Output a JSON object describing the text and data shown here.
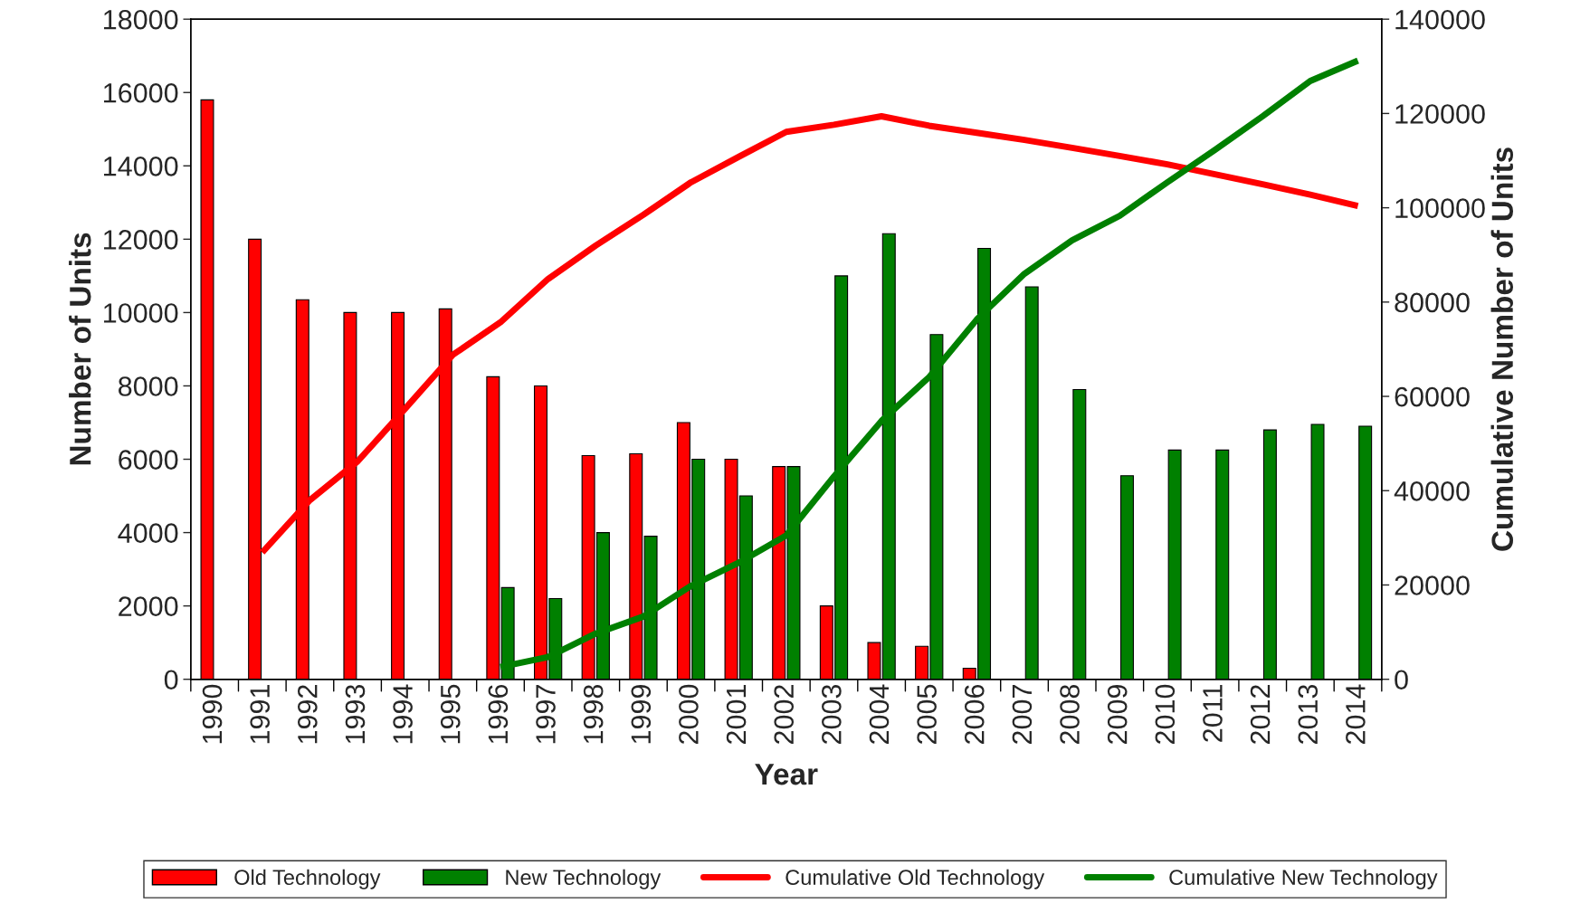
{
  "chart_data": {
    "type": "bar",
    "xlabel": "Year",
    "ylabel": "Number of Units",
    "y2label": "Cumulative Number of Units",
    "categories": [
      "1990",
      "1991",
      "1992",
      "1993",
      "1994",
      "1995",
      "1996",
      "1997",
      "1998",
      "1999",
      "2000",
      "2001",
      "2002",
      "2003",
      "2004",
      "2005",
      "2006",
      "2007",
      "2008",
      "2009",
      "2010",
      "2011",
      "2012",
      "2013",
      "2014"
    ],
    "series": [
      {
        "name": "Old Technology",
        "color": "#ff0000",
        "values": [
          15800,
          12000,
          10350,
          10000,
          10000,
          10100,
          8250,
          8000,
          6100,
          6150,
          7000,
          6000,
          5800,
          2000,
          1000,
          900,
          300,
          null,
          null,
          null,
          null,
          null,
          null,
          null,
          null
        ]
      },
      {
        "name": "New Technology",
        "color": "#008000",
        "values": [
          null,
          null,
          null,
          null,
          null,
          null,
          2500,
          2200,
          4000,
          3900,
          6000,
          5000,
          5800,
          11000,
          12150,
          9400,
          11750,
          10700,
          7900,
          5550,
          6250,
          6250,
          6800,
          6950,
          6900
        ]
      },
      {
        "name": "Cumulative Old Technology",
        "type": "line",
        "axis": "y2",
        "color": "#ff0000",
        "values": [
          null,
          26900,
          38000,
          46200,
          57400,
          68800,
          75700,
          84900,
          92000,
          98500,
          105400,
          110800,
          116100,
          117600,
          119400,
          117400,
          115900,
          114400,
          112700,
          111000,
          109200,
          107100,
          105000,
          102800,
          100400
        ]
      },
      {
        "name": "Cumulative New Technology",
        "type": "line",
        "axis": "y2",
        "color": "#008000",
        "values": [
          null,
          null,
          null,
          null,
          null,
          null,
          2600,
          4700,
          9700,
          13300,
          19800,
          24700,
          30500,
          43000,
          54800,
          64100,
          76300,
          86000,
          93100,
          98300,
          105400,
          112300,
          119400,
          126900,
          131200
        ]
      }
    ],
    "ylim": [
      0,
      18000
    ],
    "yticks": [
      0,
      2000,
      4000,
      6000,
      8000,
      10000,
      12000,
      14000,
      16000,
      18000
    ],
    "y2lim": [
      0,
      140000
    ],
    "y2ticks": [
      0,
      20000,
      40000,
      60000,
      80000,
      100000,
      120000,
      140000
    ],
    "grid": false,
    "legend": "bottom"
  }
}
